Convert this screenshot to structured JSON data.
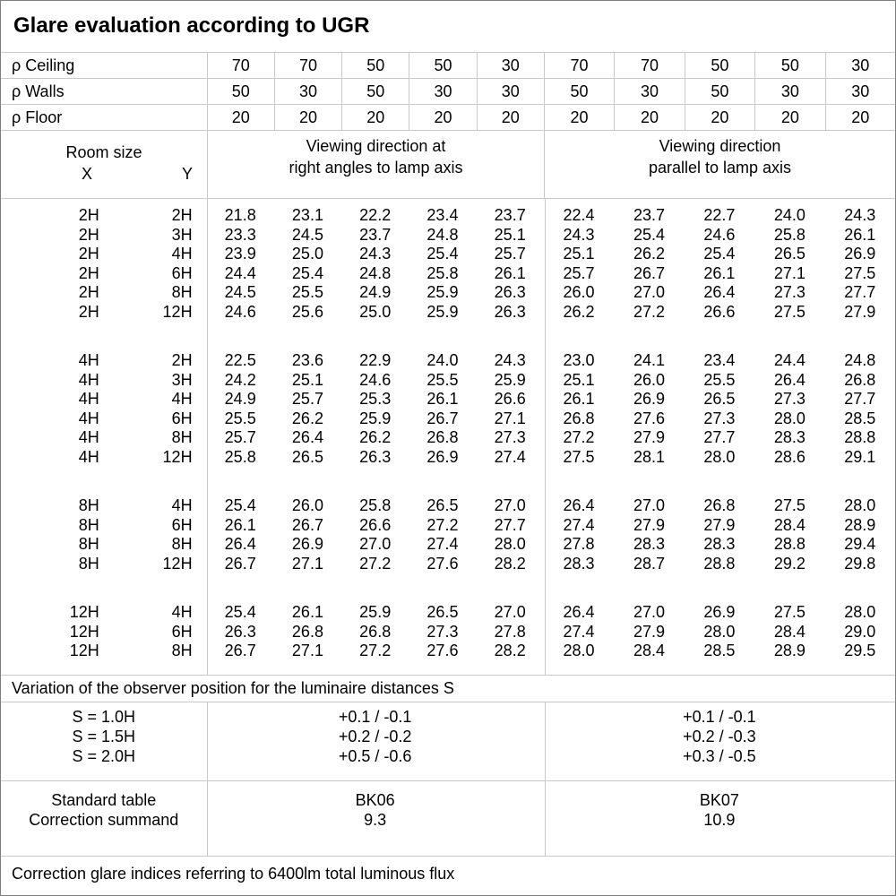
{
  "title": "Glare evaluation according to UGR",
  "reflectances": {
    "rows": [
      {
        "label": "ρ Ceiling",
        "values": [
          "70",
          "70",
          "50",
          "50",
          "30",
          "70",
          "70",
          "50",
          "50",
          "30"
        ]
      },
      {
        "label": "ρ Walls",
        "values": [
          "50",
          "30",
          "50",
          "30",
          "30",
          "50",
          "30",
          "50",
          "30",
          "30"
        ]
      },
      {
        "label": "ρ Floor",
        "values": [
          "20",
          "20",
          "20",
          "20",
          "20",
          "20",
          "20",
          "20",
          "20",
          "20"
        ]
      }
    ]
  },
  "header": {
    "room_size": "Room size",
    "x": "X",
    "y": "Y",
    "right_angle_line1": "Viewing direction at",
    "right_angle_line2": "right angles to lamp axis",
    "parallel_line1": "Viewing direction",
    "parallel_line2": "parallel to lamp axis"
  },
  "ugr_groups": [
    {
      "rows": [
        {
          "x": "2H",
          "y": "2H",
          "right_angle": [
            "21.8",
            "23.1",
            "22.2",
            "23.4",
            "23.7"
          ],
          "parallel": [
            "22.4",
            "23.7",
            "22.7",
            "24.0",
            "24.3"
          ]
        },
        {
          "x": "2H",
          "y": "3H",
          "right_angle": [
            "23.3",
            "24.5",
            "23.7",
            "24.8",
            "25.1"
          ],
          "parallel": [
            "24.3",
            "25.4",
            "24.6",
            "25.8",
            "26.1"
          ]
        },
        {
          "x": "2H",
          "y": "4H",
          "right_angle": [
            "23.9",
            "25.0",
            "24.3",
            "25.4",
            "25.7"
          ],
          "parallel": [
            "25.1",
            "26.2",
            "25.4",
            "26.5",
            "26.9"
          ]
        },
        {
          "x": "2H",
          "y": "6H",
          "right_angle": [
            "24.4",
            "25.4",
            "24.8",
            "25.8",
            "26.1"
          ],
          "parallel": [
            "25.7",
            "26.7",
            "26.1",
            "27.1",
            "27.5"
          ]
        },
        {
          "x": "2H",
          "y": "8H",
          "right_angle": [
            "24.5",
            "25.5",
            "24.9",
            "25.9",
            "26.3"
          ],
          "parallel": [
            "26.0",
            "27.0",
            "26.4",
            "27.3",
            "27.7"
          ]
        },
        {
          "x": "2H",
          "y": "12H",
          "right_angle": [
            "24.6",
            "25.6",
            "25.0",
            "25.9",
            "26.3"
          ],
          "parallel": [
            "26.2",
            "27.2",
            "26.6",
            "27.5",
            "27.9"
          ]
        }
      ]
    },
    {
      "rows": [
        {
          "x": "4H",
          "y": "2H",
          "right_angle": [
            "22.5",
            "23.6",
            "22.9",
            "24.0",
            "24.3"
          ],
          "parallel": [
            "23.0",
            "24.1",
            "23.4",
            "24.4",
            "24.8"
          ]
        },
        {
          "x": "4H",
          "y": "3H",
          "right_angle": [
            "24.2",
            "25.1",
            "24.6",
            "25.5",
            "25.9"
          ],
          "parallel": [
            "25.1",
            "26.0",
            "25.5",
            "26.4",
            "26.8"
          ]
        },
        {
          "x": "4H",
          "y": "4H",
          "right_angle": [
            "24.9",
            "25.7",
            "25.3",
            "26.1",
            "26.6"
          ],
          "parallel": [
            "26.1",
            "26.9",
            "26.5",
            "27.3",
            "27.7"
          ]
        },
        {
          "x": "4H",
          "y": "6H",
          "right_angle": [
            "25.5",
            "26.2",
            "25.9",
            "26.7",
            "27.1"
          ],
          "parallel": [
            "26.8",
            "27.6",
            "27.3",
            "28.0",
            "28.5"
          ]
        },
        {
          "x": "4H",
          "y": "8H",
          "right_angle": [
            "25.7",
            "26.4",
            "26.2",
            "26.8",
            "27.3"
          ],
          "parallel": [
            "27.2",
            "27.9",
            "27.7",
            "28.3",
            "28.8"
          ]
        },
        {
          "x": "4H",
          "y": "12H",
          "right_angle": [
            "25.8",
            "26.5",
            "26.3",
            "26.9",
            "27.4"
          ],
          "parallel": [
            "27.5",
            "28.1",
            "28.0",
            "28.6",
            "29.1"
          ]
        }
      ]
    },
    {
      "rows": [
        {
          "x": "8H",
          "y": "4H",
          "right_angle": [
            "25.4",
            "26.0",
            "25.8",
            "26.5",
            "27.0"
          ],
          "parallel": [
            "26.4",
            "27.0",
            "26.8",
            "27.5",
            "28.0"
          ]
        },
        {
          "x": "8H",
          "y": "6H",
          "right_angle": [
            "26.1",
            "26.7",
            "26.6",
            "27.2",
            "27.7"
          ],
          "parallel": [
            "27.4",
            "27.9",
            "27.9",
            "28.4",
            "28.9"
          ]
        },
        {
          "x": "8H",
          "y": "8H",
          "right_angle": [
            "26.4",
            "26.9",
            "27.0",
            "27.4",
            "28.0"
          ],
          "parallel": [
            "27.8",
            "28.3",
            "28.3",
            "28.8",
            "29.4"
          ]
        },
        {
          "x": "8H",
          "y": "12H",
          "right_angle": [
            "26.7",
            "27.1",
            "27.2",
            "27.6",
            "28.2"
          ],
          "parallel": [
            "28.3",
            "28.7",
            "28.8",
            "29.2",
            "29.8"
          ]
        }
      ]
    },
    {
      "rows": [
        {
          "x": "12H",
          "y": "4H",
          "right_angle": [
            "25.4",
            "26.1",
            "25.9",
            "26.5",
            "27.0"
          ],
          "parallel": [
            "26.4",
            "27.0",
            "26.9",
            "27.5",
            "28.0"
          ]
        },
        {
          "x": "12H",
          "y": "6H",
          "right_angle": [
            "26.3",
            "26.8",
            "26.8",
            "27.3",
            "27.8"
          ],
          "parallel": [
            "27.4",
            "27.9",
            "28.0",
            "28.4",
            "29.0"
          ]
        },
        {
          "x": "12H",
          "y": "8H",
          "right_angle": [
            "26.7",
            "27.1",
            "27.2",
            "27.6",
            "28.2"
          ],
          "parallel": [
            "28.0",
            "28.4",
            "28.5",
            "28.9",
            "29.5"
          ]
        }
      ]
    }
  ],
  "variation": {
    "title": "Variation of the observer position for the luminaire distances S",
    "rows": [
      {
        "label": "S = 1.0H",
        "right_angle": "+0.1 / -0.1",
        "parallel": "+0.1 / -0.1"
      },
      {
        "label": "S = 1.5H",
        "right_angle": "+0.2 / -0.2",
        "parallel": "+0.2 / -0.3"
      },
      {
        "label": "S = 2.0H",
        "right_angle": "+0.5 / -0.6",
        "parallel": "+0.3 / -0.5"
      }
    ]
  },
  "summary": {
    "standard_table_label": "Standard table",
    "correction_summand_label": "Correction summand",
    "right_angle": {
      "standard_table": "BK06",
      "correction_summand": "9.3"
    },
    "parallel": {
      "standard_table": "BK07",
      "correction_summand": "10.9"
    }
  },
  "footer": "Correction glare indices referring to 6400lm total luminous flux"
}
